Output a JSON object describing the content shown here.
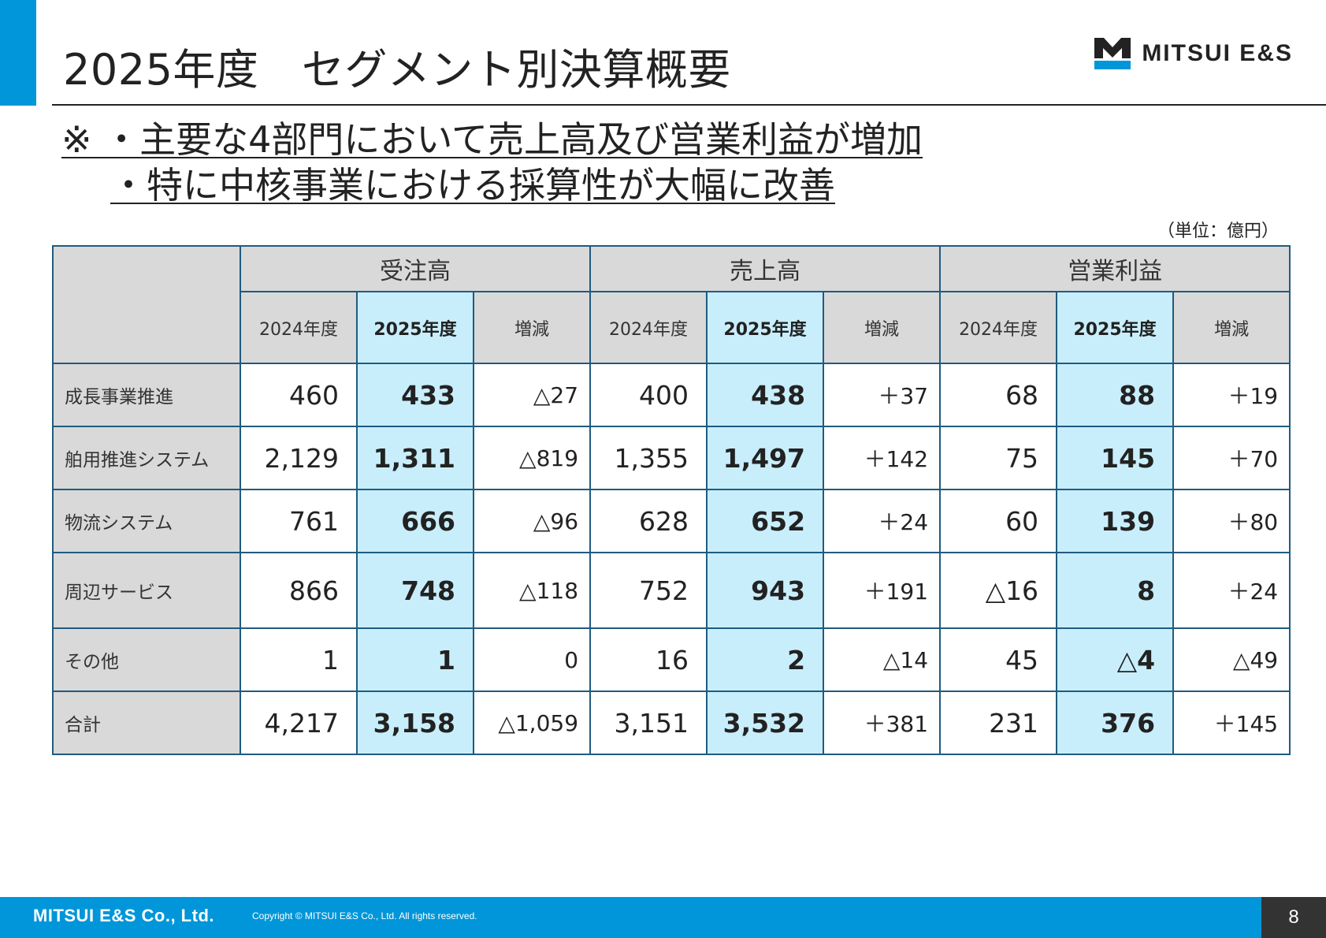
{
  "header": {
    "title": "2025年度　セグメント別決算概要",
    "logo_text": "MITSUI E&S"
  },
  "notes": {
    "line1": "※ ・主要な4部門において売上高及び営業利益が増加",
    "line2": "・特に中核事業における採算性が大幅に改善"
  },
  "unit": "（単位：億円）",
  "table": {
    "groups": [
      "受注高",
      "売上高",
      "営業利益"
    ],
    "subheaders": [
      "2024年度",
      "2025年度",
      "増減"
    ],
    "rows": [
      {
        "label": "成長事業推進",
        "values": [
          "460",
          "433",
          "△27",
          "400",
          "438",
          "＋37",
          "68",
          "88",
          "＋19"
        ]
      },
      {
        "label": "舶用推進システム",
        "values": [
          "2,129",
          "1,311",
          "△819",
          "1,355",
          "1,497",
          "＋142",
          "75",
          "145",
          "＋70"
        ]
      },
      {
        "label": "物流システム",
        "values": [
          "761",
          "666",
          "△96",
          "628",
          "652",
          "＋24",
          "60",
          "139",
          "＋80"
        ]
      },
      {
        "label": "周辺サービス",
        "values": [
          "866",
          "748",
          "△118",
          "752",
          "943",
          "＋191",
          "△16",
          "8",
          "＋24"
        ]
      },
      {
        "label": "その他",
        "values": [
          "1",
          "1",
          "0",
          "16",
          "2",
          "△14",
          "45",
          "△4",
          "△49"
        ]
      },
      {
        "label": "合計",
        "values": [
          "4,217",
          "3,158",
          "△1,059",
          "3,151",
          "3,532",
          "＋381",
          "231",
          "376",
          "＋145"
        ]
      }
    ]
  },
  "footer": {
    "brand": "MITSUI E&S Co., Ltd.",
    "copyright": "Copyright © MITSUI E&S Co., Ltd. All rights reserved.",
    "page_number": "8"
  },
  "colors": {
    "accent": "#0096d9",
    "header_gray": "#d9d9d9",
    "current_year_highlight": "#c9eefb",
    "table_border": "#1f5b80"
  }
}
